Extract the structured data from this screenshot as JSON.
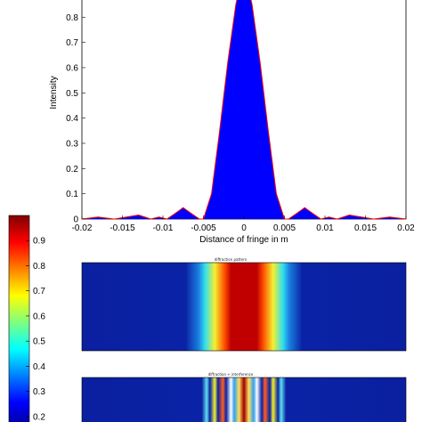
{
  "chart_data": [
    {
      "type": "area",
      "xlabel": "Distance of fringe in m",
      "ylabel": "Intensity",
      "xlim": [
        -0.02,
        0.02
      ],
      "ylim": [
        0,
        0.9
      ],
      "xticks": [
        "-0.02",
        "-0.015",
        "-0.01",
        "-0.005",
        "0",
        "0.005",
        "0.01",
        "0.015",
        "0.02"
      ],
      "yticks": [
        "0",
        "0.1",
        "0.2",
        "0.3",
        "0.4",
        "0.5",
        "0.6",
        "0.7",
        "0.8"
      ],
      "fill_color": "#0000ff",
      "line_color": "#ff0000",
      "series": [
        {
          "x": [
            -0.02,
            -0.018,
            -0.016,
            -0.0145,
            -0.013,
            -0.0115,
            -0.0105,
            -0.0095,
            -0.0085,
            -0.0075,
            -0.0065,
            -0.0055,
            -0.005,
            -0.004,
            -0.003,
            -0.002,
            -0.001,
            0,
            0.001,
            0.002,
            0.003,
            0.004,
            0.005,
            0.0055,
            0.0065,
            0.0075,
            0.0085,
            0.0095,
            0.0105,
            0.0115,
            0.013,
            0.0145,
            0.016,
            0.018,
            0.02
          ],
          "y": [
            0.0,
            0.008,
            0.0,
            0.008,
            0.016,
            0.0,
            0.008,
            0.0,
            0.022,
            0.045,
            0.022,
            0.0,
            0.0,
            0.1,
            0.35,
            0.62,
            0.85,
            1.0,
            0.85,
            0.62,
            0.35,
            0.1,
            0.0,
            0.0,
            0.022,
            0.045,
            0.022,
            0.0,
            0.008,
            0.0,
            0.016,
            0.008,
            0.0,
            0.008,
            0.0
          ]
        }
      ]
    },
    {
      "type": "heatmap",
      "colorbar": {
        "ticks": [
          "0.9",
          "0.8",
          "0.7",
          "0.6",
          "0.5",
          "0.4",
          "0.3",
          "0.2"
        ],
        "range": [
          0.15,
          1.0
        ]
      },
      "panels": [
        {
          "title": "diffraction pattern",
          "pattern": "single-slit"
        },
        {
          "title": "diffraction + interference",
          "pattern": "multi-slit"
        }
      ]
    }
  ]
}
